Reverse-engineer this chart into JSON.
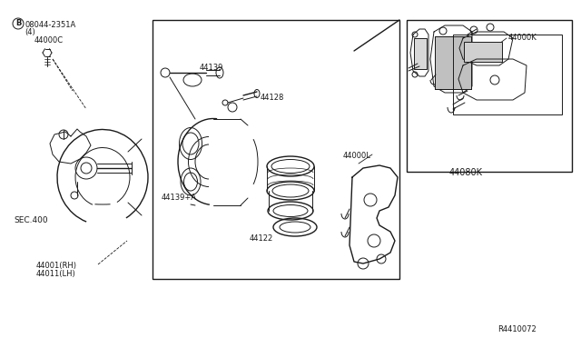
{
  "background_color": "#ffffff",
  "line_color": "#1a1a1a",
  "fig_width": 6.4,
  "fig_height": 3.72,
  "dpi": 100,
  "labels": {
    "bolt_ref": "B",
    "bolt_num": "08044-2351A",
    "bolt_qty": "(4)",
    "part_44000C": "44000C",
    "part_44139": "44139",
    "part_44128": "44128",
    "part_44139A": "44139+A",
    "part_44122": "44122",
    "part_44000L": "44000L",
    "part_44001": "44001(RH)",
    "part_44011": "44011(LH)",
    "part_sec400": "SEC.400",
    "part_44000K": "44000K",
    "part_44080K": "44080K",
    "ref_code": "R4410072"
  }
}
